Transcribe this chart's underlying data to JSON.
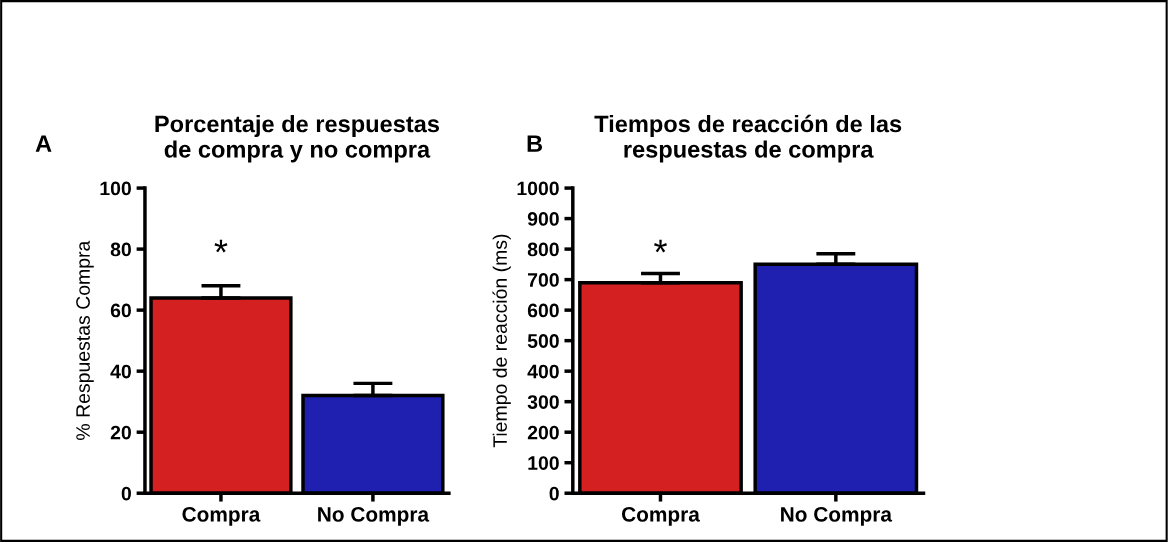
{
  "chart_data": [
    {
      "type": "bar",
      "title": "Porcentaje de respuestas\nde compra y no compra",
      "ylabel": "% Respuestas Compra",
      "categories": [
        "Compra",
        "No Compra"
      ],
      "values": [
        64,
        32
      ],
      "colors": [
        "#d42020",
        "#1f1fb0"
      ],
      "errors": [
        [
          64,
          68
        ],
        [
          32,
          36
        ]
      ],
      "ylim": [
        0,
        100
      ],
      "yticks": [
        0,
        20,
        40,
        60,
        80,
        100
      ],
      "grid": false,
      "annotations": [
        "A",
        "*"
      ]
    },
    {
      "type": "bar",
      "title": "Tiempos de reacción de las\nrespuestas de compra",
      "ylabel": "Tiempo de reacción (ms)",
      "categories": [
        "Compra",
        "No Compra"
      ],
      "values": [
        690,
        750
      ],
      "colors": [
        "#d42020",
        "#1f1fb0"
      ],
      "errors": [
        [
          690,
          720
        ],
        [
          750,
          785
        ]
      ],
      "ylim": [
        0,
        1000
      ],
      "yticks": [
        0,
        100,
        200,
        300,
        400,
        500,
        600,
        700,
        800,
        900,
        1000
      ],
      "grid": false,
      "annotations": [
        "B",
        "*"
      ]
    }
  ]
}
